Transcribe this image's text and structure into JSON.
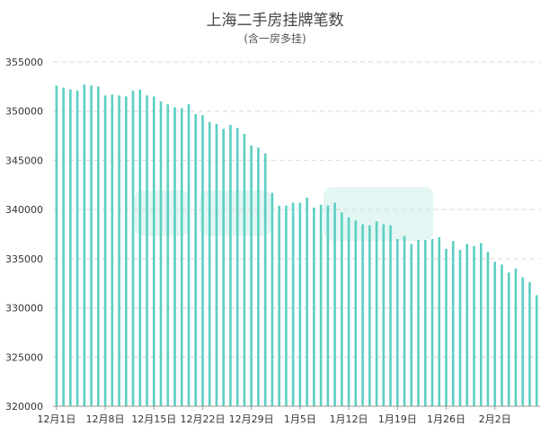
{
  "chart_data": {
    "type": "bar",
    "title": "上海二手房挂牌笔数",
    "subtitle": "(含一房多挂)",
    "xlabel": "",
    "ylabel": "",
    "ylim": [
      320000,
      355000
    ],
    "yticks": [
      320000,
      325000,
      330000,
      335000,
      340000,
      345000,
      350000,
      355000
    ],
    "xtick_labels": [
      "12月1日",
      "12月8日",
      "12月15日",
      "12月22日",
      "12月29日",
      "1月5日",
      "1月12日",
      "1月19日",
      "1月26日",
      "2月2日"
    ],
    "grid": true,
    "bar_color": "#5ccfc1",
    "series": [
      {
        "values": [
          352600,
          352400,
          352200,
          352100,
          352700,
          352600,
          352500,
          351600,
          351700,
          351600,
          351500,
          352100,
          352200,
          351600,
          351500,
          351000,
          350700,
          350400,
          350300,
          350700,
          349700,
          349600,
          348900,
          348700,
          348200,
          348600,
          348300,
          347700,
          346500,
          346300,
          345700,
          341700,
          340400,
          340400,
          340700,
          340700,
          341200,
          340200,
          340500,
          340400,
          340700,
          339700,
          339200,
          338900,
          338500,
          338400,
          338800,
          338500,
          338400,
          337000,
          337300,
          336500,
          336900,
          336900,
          337000,
          337200,
          336000,
          336800,
          335900,
          336500,
          336300,
          336600,
          335700,
          334700,
          334400,
          333600,
          334000,
          333100,
          332600,
          331300
        ]
      }
    ]
  }
}
